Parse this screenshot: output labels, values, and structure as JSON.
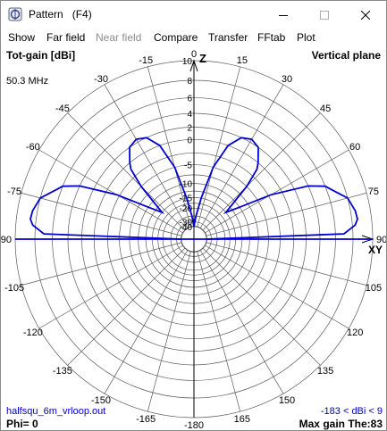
{
  "window": {
    "title": "Pattern   (F4)",
    "controls": [
      "minimize-icon",
      "maximize-icon",
      "close-icon"
    ]
  },
  "menu": {
    "items": [
      {
        "label": "Show",
        "enabled": true
      },
      {
        "label": "Far field",
        "enabled": true
      },
      {
        "label": "Near field",
        "enabled": false
      },
      {
        "label": "Compare",
        "enabled": true
      },
      {
        "label": "Transfer",
        "enabled": true
      },
      {
        "label": "FFtab",
        "enabled": true
      },
      {
        "label": "Plot",
        "enabled": true
      }
    ]
  },
  "plot": {
    "quantity": "Tot-gain [dBi]",
    "plane": "Vertical plane",
    "frequency": "50.3 MHz",
    "axis_z": "Z",
    "axis_xy": "XY",
    "file": "halfsqu_6m_vrloop.out",
    "range_text": "-183 < dBi < 9",
    "phi": "Phi= 0",
    "max_gain": "Max gain The:83",
    "colors": {
      "grid": "#5a5a5a",
      "trace": "#0000d0",
      "axis": "#000000",
      "footer": "#0000c0"
    }
  },
  "chart_data": {
    "type": "polar",
    "title": "Tot-gain [dBi]",
    "subtitle": "Vertical plane",
    "angle_labels": [
      -15,
      0,
      15,
      -30,
      30,
      -45,
      45,
      -60,
      60,
      -75,
      75,
      -90,
      90,
      -105,
      105,
      -120,
      120,
      -135,
      135,
      -150,
      150,
      -165,
      165,
      -180
    ],
    "radial_labels_dbi": [
      10,
      8,
      6,
      4,
      2,
      0,
      -5,
      -10,
      -15,
      -20,
      -30,
      -40
    ],
    "radial_range_dbi": [
      -40,
      10
    ],
    "series": [
      {
        "theta_deg": [
          0,
          3,
          5,
          10,
          15,
          20,
          25,
          30,
          35,
          40,
          42,
          45,
          50,
          55,
          60,
          65,
          68,
          70,
          75,
          80,
          83,
          85,
          88,
          90
        ],
        "gain_dbi": [
          -40,
          -30,
          -25,
          -15,
          -5,
          0,
          2,
          2.5,
          2,
          0,
          -1,
          -5,
          -15,
          -10,
          -2,
          4,
          6,
          6.5,
          8,
          8.5,
          8.6,
          8.3,
          7,
          -40
        ]
      }
    ]
  }
}
